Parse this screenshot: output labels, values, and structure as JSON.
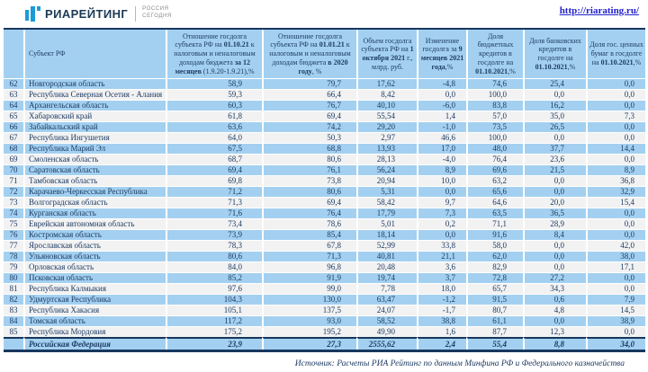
{
  "page": {
    "logo": {
      "brand": "РИАРЕЙТИНГ",
      "agency_line1": "РОССИЯ",
      "agency_line2": "СЕГОДНЯ"
    },
    "url": "http://riarating.ru/",
    "source_note": "Источник: Расчеты РИА Рейтинг по данным Минфина РФ и Федерального казначейства"
  },
  "colors": {
    "stripe_blue": "#A3D0F0",
    "stripe_gray": "#F2F2F2",
    "text_navy": "#1D3B63",
    "border_navy": "#17375E",
    "link_blue": "#2121CC",
    "logo_blue": "#1C9AD8"
  },
  "table": {
    "columns": [
      {
        "id": "rank",
        "segments": [
          {
            "t": "",
            "b": false
          }
        ]
      },
      {
        "id": "region",
        "segments": [
          {
            "t": "Субъект РФ",
            "b": false
          }
        ]
      },
      {
        "id": "ratio-oct",
        "segments": [
          {
            "t": "Отношение госдолга субъекта РФ на ",
            "b": false
          },
          {
            "t": "01.10.21",
            "b": true
          },
          {
            "t": " к налоговым и неналоговым доходам бюджета ",
            "b": false
          },
          {
            "t": "за 12 месяцев",
            "b": true
          },
          {
            "t": " (1.9.20-1.9.21),%",
            "b": false
          }
        ]
      },
      {
        "id": "ratio-jan",
        "segments": [
          {
            "t": "Отношение госдолга субъекта РФ на ",
            "b": false
          },
          {
            "t": "01.01.21",
            "b": true
          },
          {
            "t": " к налоговым и неналоговым доходам бюджета ",
            "b": false
          },
          {
            "t": "в 2020 году",
            "b": true
          },
          {
            "t": ", %",
            "b": false
          }
        ]
      },
      {
        "id": "debt-volume",
        "segments": [
          {
            "t": "Объем госдолга субъекта РФ на ",
            "b": false
          },
          {
            "t": "1 октября 2021",
            "b": true
          },
          {
            "t": " г., млрд. руб.",
            "b": false
          }
        ]
      },
      {
        "id": "debt-change",
        "segments": [
          {
            "t": "Изменение госдолга за ",
            "b": false
          },
          {
            "t": "9 месяцев",
            "b": true
          },
          {
            "t": " ",
            "b": false
          },
          {
            "t": "2021 года",
            "b": true
          },
          {
            "t": ",%",
            "b": false
          }
        ]
      },
      {
        "id": "budget-loans",
        "segments": [
          {
            "t": "Доля бюджетных кредитов в госдолге на ",
            "b": false
          },
          {
            "t": "01.10.2021",
            "b": true
          },
          {
            "t": ",%",
            "b": false
          }
        ]
      },
      {
        "id": "bank-loans",
        "segments": [
          {
            "t": "Доля банковских кредитов в госдолге на ",
            "b": false
          },
          {
            "t": "01.10.2021",
            "b": true
          },
          {
            "t": ",%",
            "b": false
          }
        ]
      },
      {
        "id": "securities",
        "segments": [
          {
            "t": "Доля гос. ценных бумаг в госдолге на ",
            "b": false
          },
          {
            "t": "01.10.2021",
            "b": true
          },
          {
            "t": ",%",
            "b": false
          }
        ]
      }
    ],
    "rows": [
      [
        "62",
        "Новгородская область",
        "58,9",
        "79,7",
        "17,62",
        "-4,8",
        "74,6",
        "25,4",
        "0,0"
      ],
      [
        "63",
        "Республика Северная Осетия - Алания",
        "59,3",
        "66,4",
        "8,42",
        "0,0",
        "100,0",
        "0,0",
        "0,0"
      ],
      [
        "64",
        "Архангельская область",
        "60,3",
        "76,7",
        "40,10",
        "-6,0",
        "83,8",
        "16,2",
        "0,0"
      ],
      [
        "65",
        "Хабаровский край",
        "61,8",
        "69,4",
        "55,54",
        "1,4",
        "57,0",
        "35,0",
        "7,3"
      ],
      [
        "66",
        "Забайкальский край",
        "63,6",
        "74,2",
        "29,20",
        "-1,0",
        "73,5",
        "26,5",
        "0,0"
      ],
      [
        "67",
        "Республика Ингушетия",
        "64,0",
        "50,3",
        "2,97",
        "46,6",
        "100,0",
        "0,0",
        "0,0"
      ],
      [
        "68",
        "Республика Марий Эл",
        "67,5",
        "68,8",
        "13,93",
        "17,0",
        "48,0",
        "37,7",
        "14,4"
      ],
      [
        "69",
        "Смоленская область",
        "68,7",
        "80,6",
        "28,13",
        "-4,0",
        "76,4",
        "23,6",
        "0,0"
      ],
      [
        "70",
        "Саратовская область",
        "69,4",
        "76,1",
        "56,24",
        "8,9",
        "69,6",
        "21,5",
        "8,9"
      ],
      [
        "71",
        "Тамбовская область",
        "69,8",
        "73,8",
        "20,94",
        "10,0",
        "63,2",
        "0,0",
        "36,8"
      ],
      [
        "72",
        "Карачаево-Черкесская Республика",
        "71,2",
        "80,6",
        "5,31",
        "0,0",
        "65,6",
        "0,0",
        "32,9"
      ],
      [
        "73",
        "Волгоградская область",
        "71,3",
        "69,4",
        "58,42",
        "9,7",
        "64,6",
        "20,0",
        "15,4"
      ],
      [
        "74",
        "Курганская область",
        "71,6",
        "76,4",
        "17,79",
        "7,3",
        "63,5",
        "36,5",
        "0,0"
      ],
      [
        "75",
        "Еврейская автономная область",
        "73,4",
        "78,6",
        "5,01",
        "0,2",
        "71,1",
        "28,9",
        "0,0"
      ],
      [
        "76",
        "Костромская область",
        "73,9",
        "85,4",
        "18,14",
        "0,0",
        "91,6",
        "8,4",
        "0,0"
      ],
      [
        "77",
        "Ярославская область",
        "78,3",
        "67,8",
        "52,99",
        "33,8",
        "58,0",
        "0,0",
        "42,0"
      ],
      [
        "78",
        "Ульяновская область",
        "80,6",
        "71,3",
        "40,81",
        "21,1",
        "62,0",
        "0,0",
        "38,0"
      ],
      [
        "79",
        "Орловская область",
        "84,0",
        "96,8",
        "20,48",
        "3,6",
        "82,9",
        "0,0",
        "17,1"
      ],
      [
        "80",
        "Псковская область",
        "85,2",
        "91,9",
        "19,74",
        "3,7",
        "72,8",
        "27,2",
        "0,0"
      ],
      [
        "81",
        "Республика Калмыкия",
        "97,6",
        "99,0",
        "7,78",
        "18,0",
        "65,7",
        "34,3",
        "0,0"
      ],
      [
        "82",
        "Удмуртская Республика",
        "104,3",
        "130,0",
        "63,47",
        "-1,2",
        "91,5",
        "0,6",
        "7,9"
      ],
      [
        "83",
        "Республика Хакасия",
        "105,1",
        "137,5",
        "24,07",
        "-1,7",
        "80,7",
        "4,8",
        "14,5"
      ],
      [
        "84",
        "Томская область",
        "117,2",
        "93,0",
        "58,52",
        "38,8",
        "61,1",
        "0,0",
        "38,9"
      ],
      [
        "85",
        "Республика Мордовия",
        "175,2",
        "195,2",
        "49,90",
        "1,6",
        "87,7",
        "12,3",
        "0,0"
      ]
    ],
    "total_row": [
      "",
      "Российская Федерация",
      "23,9",
      "27,3",
      "2555,62",
      "2,4",
      "55,4",
      "8,8",
      "34,0"
    ]
  }
}
